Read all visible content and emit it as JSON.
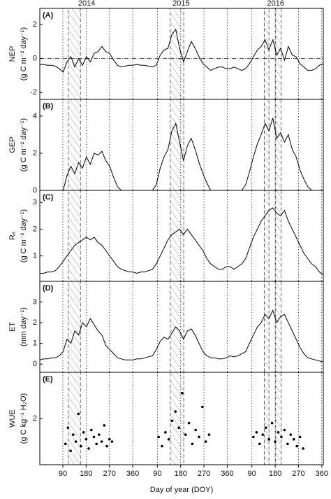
{
  "chart_data": [
    {
      "type": "line",
      "panel_label": "(A)",
      "ylabel": "NEP",
      "yunit": "(g C m⁻² day⁻¹)",
      "color": "#000000",
      "ylim": [
        -2.4,
        2.94
      ],
      "yticks": [
        -2,
        0,
        2
      ],
      "hline": 0,
      "top_ticks": [
        {
          "value": 182,
          "label": "2014"
        },
        {
          "value": 547,
          "label": "2015"
        },
        {
          "value": 912,
          "label": "2016"
        }
      ],
      "highlight_periods": [
        [
          111,
          158
        ],
        [
          505,
          557
        ],
        [
          868,
          886
        ],
        [
          912,
          933
        ]
      ],
      "x": [
        1,
        16,
        31,
        46,
        61,
        76,
        91,
        106,
        121,
        136,
        151,
        166,
        181,
        196,
        211,
        226,
        241,
        256,
        271,
        286,
        301,
        316,
        331,
        346,
        361,
        376,
        391,
        406,
        421,
        436,
        451,
        466,
        481,
        496,
        511,
        526,
        541,
        556,
        571,
        586,
        601,
        616,
        631,
        646,
        661,
        676,
        691,
        706,
        721,
        736,
        751,
        766,
        781,
        796,
        811,
        826,
        841,
        856,
        871,
        886,
        901,
        916,
        931,
        946,
        961,
        976,
        991,
        1006,
        1021,
        1036,
        1051,
        1066,
        1081,
        1096
      ],
      "values": [
        -0.35,
        -0.35,
        -0.4,
        -0.4,
        -0.45,
        -0.6,
        -0.8,
        -0.2,
        0.1,
        -0.5,
        0,
        -0.4,
        0.1,
        -0.2,
        0.3,
        0.4,
        0.7,
        0.4,
        0.3,
        -0.1,
        -0.4,
        -0.5,
        -0.45,
        -0.4,
        -0.4,
        -0.35,
        -0.4,
        -0.4,
        -0.45,
        -0.5,
        -0.4,
        0.2,
        0.5,
        0.6,
        1.4,
        1.7,
        0.6,
        -0.2,
        0.4,
        1.0,
        0.6,
        0.1,
        -0.3,
        -0.5,
        -0.7,
        -0.6,
        -0.5,
        -0.5,
        -0.6,
        -0.6,
        -0.5,
        -0.6,
        -0.7,
        -0.6,
        -0.3,
        0.1,
        0.5,
        0.7,
        1.1,
        0.5,
        1.1,
        0.2,
        0.6,
        -0.1,
        0.7,
        0.2,
        0.1,
        -0.3,
        -0.5,
        -0.7,
        -0.7,
        -0.6,
        -0.4,
        -0.3
      ]
    },
    {
      "type": "line",
      "panel_label": "(B)",
      "ylabel": "GEP",
      "yunit": "(g C m⁻² day⁻¹)",
      "color": "#000000",
      "ylim": [
        0,
        4.9
      ],
      "yticks": [
        0,
        2,
        4
      ],
      "x": [
        1,
        16,
        31,
        46,
        61,
        76,
        91,
        106,
        121,
        136,
        151,
        166,
        181,
        196,
        211,
        226,
        241,
        256,
        271,
        286,
        301,
        316,
        331,
        346,
        361,
        376,
        391,
        406,
        421,
        436,
        451,
        466,
        481,
        496,
        511,
        526,
        541,
        556,
        571,
        586,
        601,
        616,
        631,
        646,
        661,
        676,
        691,
        706,
        721,
        736,
        751,
        766,
        781,
        796,
        811,
        826,
        841,
        856,
        871,
        886,
        901,
        916,
        931,
        946,
        961,
        976,
        991,
        1006,
        1021,
        1036,
        1051,
        1066,
        1081,
        1096
      ],
      "values": [
        0,
        0,
        0,
        0,
        0,
        0,
        0,
        0.8,
        1.3,
        0.9,
        1.5,
        1.2,
        1.8,
        1.4,
        2.0,
        1.9,
        2.1,
        1.6,
        1.3,
        0.7,
        0.2,
        0,
        0,
        0,
        0,
        0,
        0,
        0,
        0,
        0,
        0.3,
        1.2,
        1.8,
        2.2,
        3.2,
        3.6,
        2.6,
        1.6,
        2.4,
        2.8,
        2.2,
        1.5,
        0.9,
        0.4,
        0,
        0,
        0,
        0,
        0,
        0,
        0,
        0,
        0,
        0.3,
        1.0,
        1.8,
        2.5,
        3.0,
        3.6,
        3.2,
        3.9,
        2.8,
        3.1,
        2.6,
        3.0,
        2.2,
        1.8,
        1.1,
        0.6,
        0.2,
        0,
        0,
        0,
        0
      ]
    },
    {
      "type": "line",
      "panel_label": "(C)",
      "ylabel": "Rₑ",
      "yunit": "(g C m⁻² day⁻¹)",
      "color": "#000000",
      "ylim": [
        0.05,
        3.45
      ],
      "yticks": [
        1,
        2,
        3
      ],
      "x": [
        1,
        16,
        31,
        46,
        61,
        76,
        91,
        106,
        121,
        136,
        151,
        166,
        181,
        196,
        211,
        226,
        241,
        256,
        271,
        286,
        301,
        316,
        331,
        346,
        361,
        376,
        391,
        406,
        421,
        436,
        451,
        466,
        481,
        496,
        511,
        526,
        541,
        556,
        571,
        586,
        601,
        616,
        631,
        646,
        661,
        676,
        691,
        706,
        721,
        736,
        751,
        766,
        781,
        796,
        811,
        826,
        841,
        856,
        871,
        886,
        901,
        916,
        931,
        946,
        961,
        976,
        991,
        1006,
        1021,
        1036,
        1051,
        1066,
        1081,
        1096
      ],
      "values": [
        0.35,
        0.35,
        0.4,
        0.4,
        0.45,
        0.6,
        0.8,
        1.0,
        1.2,
        1.4,
        1.5,
        1.6,
        1.7,
        1.6,
        1.7,
        1.5,
        1.4,
        1.2,
        1.0,
        0.8,
        0.6,
        0.5,
        0.45,
        0.4,
        0.4,
        0.35,
        0.4,
        0.4,
        0.45,
        0.5,
        0.7,
        1.0,
        1.3,
        1.6,
        1.8,
        1.9,
        2.0,
        1.8,
        2.0,
        1.8,
        1.6,
        1.4,
        1.2,
        0.9,
        0.7,
        0.6,
        0.5,
        0.5,
        0.6,
        0.6,
        0.5,
        0.6,
        0.7,
        0.9,
        1.3,
        1.7,
        2.0,
        2.3,
        2.5,
        2.7,
        2.8,
        2.6,
        2.5,
        2.7,
        2.3,
        2.0,
        1.7,
        1.4,
        1.1,
        0.9,
        0.7,
        0.6,
        0.4,
        0.3
      ]
    },
    {
      "type": "line",
      "panel_label": "(D)",
      "ylabel": "ET",
      "yunit": "(mm day⁻¹)",
      "color": "#000000",
      "ylim": [
        -0.4,
        4.0
      ],
      "yticks": [
        0,
        1,
        2,
        3
      ],
      "x": [
        1,
        16,
        31,
        46,
        61,
        76,
        91,
        106,
        121,
        136,
        151,
        166,
        181,
        196,
        211,
        226,
        241,
        256,
        271,
        286,
        301,
        316,
        331,
        346,
        361,
        376,
        391,
        406,
        421,
        436,
        451,
        466,
        481,
        496,
        511,
        526,
        541,
        556,
        571,
        586,
        601,
        616,
        631,
        646,
        661,
        676,
        691,
        706,
        721,
        736,
        751,
        766,
        781,
        796,
        811,
        826,
        841,
        856,
        871,
        886,
        901,
        916,
        931,
        946,
        961,
        976,
        991,
        1006,
        1021,
        1036,
        1051,
        1066,
        1081,
        1096
      ],
      "values": [
        0.2,
        0.25,
        0.25,
        0.3,
        0.3,
        0.4,
        0.6,
        1.2,
        1.0,
        1.6,
        1.4,
        2.0,
        1.8,
        2.2,
        1.9,
        1.6,
        1.4,
        0.9,
        0.7,
        0.5,
        0.3,
        0.25,
        0.2,
        0.2,
        0.2,
        0.25,
        0.25,
        0.3,
        0.35,
        0.4,
        0.7,
        1.1,
        1.3,
        1.2,
        1.5,
        1.8,
        1.6,
        1.2,
        1.6,
        1.7,
        1.4,
        1.0,
        0.6,
        0.4,
        0.3,
        0.3,
        0.25,
        0.25,
        0.3,
        0.4,
        0.35,
        0.4,
        0.5,
        0.6,
        1.0,
        1.4,
        1.8,
        2.0,
        2.4,
        2.2,
        2.6,
        2.0,
        2.3,
        2.4,
        2.0,
        1.6,
        1.2,
        0.8,
        0.5,
        0.3,
        0.25,
        0.2,
        0.15,
        0.1
      ]
    },
    {
      "type": "scatter",
      "panel_label": "(E)",
      "ylabel": "WUE",
      "yunit": "(g C kg⁻¹ H₂O)",
      "color": "#000000",
      "ylim": [
        0,
        4
      ],
      "yticks": [
        2
      ],
      "xlabel": "Day of year (DOY)",
      "xlim": [
        1,
        1096
      ],
      "xticks": [
        90,
        180,
        270,
        360,
        {
          "value": 455,
          "label": "90"
        },
        {
          "value": 545,
          "label": "180"
        },
        {
          "value": 635,
          "label": "270"
        },
        {
          "value": 725,
          "label": "360"
        },
        {
          "value": 820,
          "label": "90"
        },
        {
          "value": 910,
          "label": "180"
        },
        {
          "value": 1000,
          "label": "270"
        },
        {
          "value": 1090,
          "label": "360"
        }
      ],
      "x": [
        100,
        110,
        120,
        130,
        140,
        150,
        160,
        170,
        180,
        190,
        200,
        210,
        220,
        230,
        240,
        250,
        260,
        270,
        280,
        460,
        473,
        486,
        499,
        512,
        525,
        538,
        551,
        564,
        577,
        590,
        603,
        616,
        629,
        642,
        655,
        826,
        838,
        850,
        862,
        874,
        886,
        898,
        910,
        922,
        934,
        946,
        958,
        970,
        982,
        994,
        1006,
        1018
      ],
      "values": [
        0.9,
        1.6,
        0.6,
        1.3,
        1.0,
        2.2,
        0.8,
        1.4,
        1.1,
        0.7,
        1.5,
        1.2,
        0.9,
        1.3,
        1.0,
        1.7,
        0.8,
        1.1,
        1.0,
        1.2,
        0.8,
        1.4,
        1.1,
        1.9,
        2.3,
        1.6,
        3.1,
        1.3,
        1.8,
        0.9,
        1.5,
        1.2,
        2.5,
        1.0,
        1.3,
        1.2,
        1.4,
        0.9,
        1.3,
        1.6,
        1.1,
        1.8,
        1.0,
        1.4,
        1.2,
        1.5,
        0.9,
        1.3,
        1.1,
        0.8,
        1.2,
        0.7
      ]
    }
  ]
}
